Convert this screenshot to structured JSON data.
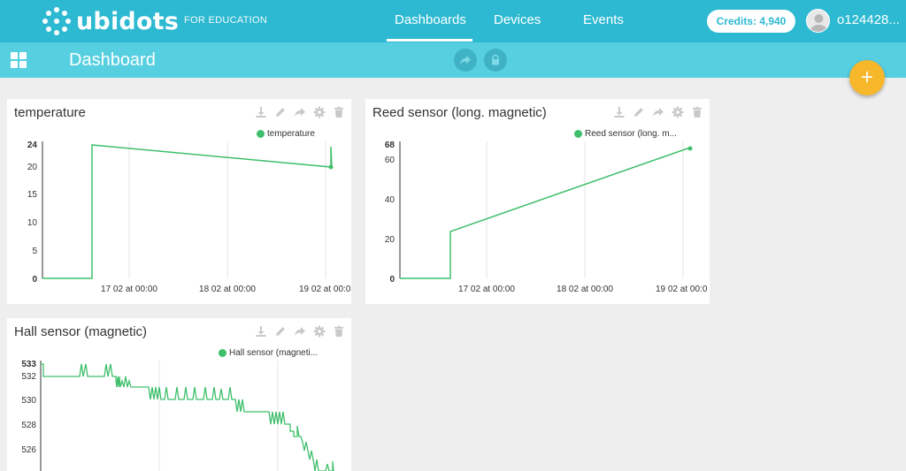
{
  "header": {
    "logo_text": "ubidots",
    "edu_label": "FOR EDUCATION",
    "nav": [
      {
        "label": "Dashboards",
        "active": true
      },
      {
        "label": "Devices",
        "active": false
      },
      {
        "label": "Events",
        "active": false
      }
    ],
    "credits": "Credits: 4,940",
    "username": "o124428..."
  },
  "subbar": {
    "title": "Dashboard",
    "icons": [
      "grid-icon",
      "share-icon",
      "lock-icon"
    ]
  },
  "fab": {
    "label": "+"
  },
  "colors": {
    "primary": "#2cb9d1",
    "secondary": "#56cfe0",
    "accent": "#f6b72b",
    "series": "#3fbf6b"
  },
  "widgets": [
    {
      "title": "temperature",
      "legend": "temperature",
      "tools": [
        "download-icon",
        "edit-icon",
        "share-icon",
        "settings-icon",
        "trash-icon"
      ],
      "y_max_label": "24",
      "y_ticks": [
        "20",
        "15",
        "10",
        "5",
        "0"
      ],
      "x_ticks": [
        "17 02 at 00:00",
        "18 02 at 00:00",
        "19 02 at 00:0"
      ]
    },
    {
      "title": "Reed sensor (long. magnetic)",
      "legend": "Reed sensor (long. m...",
      "tools": [
        "download-icon",
        "edit-icon",
        "share-icon",
        "settings-icon",
        "trash-icon"
      ],
      "y_max_label": "68",
      "y_ticks": [
        "60",
        "40",
        "20",
        "0"
      ],
      "x_ticks": [
        "17 02 at 00:00",
        "18 02 at 00:00",
        "19 02 at 00:0"
      ]
    },
    {
      "title": "Hall sensor (magnetic)",
      "legend": "Hall sensor (magneti...",
      "tools": [
        "download-icon",
        "edit-icon",
        "share-icon",
        "settings-icon",
        "trash-icon"
      ],
      "y_max_label": "533",
      "y_ticks": [
        "532",
        "530",
        "528",
        "526"
      ],
      "x_ticks": []
    }
  ],
  "chart_data": [
    {
      "type": "line",
      "series": [
        {
          "name": "temperature",
          "x": [
            "16 02 at 16:00",
            "16 02 at 16:01",
            "19 02 at 02:00",
            "19 02 at 02:05",
            "19 02 at 02:10"
          ],
          "values": [
            0,
            24,
            20,
            23,
            20
          ]
        }
      ],
      "ylim": [
        0,
        24
      ]
    },
    {
      "type": "line",
      "series": [
        {
          "name": "Reed sensor (long. magnetic)",
          "x": [
            "16 02 at 12:00",
            "16 02 at 12:01",
            "19 02 at 01:00",
            "19 02 at 01:05"
          ],
          "values": [
            0,
            24,
            65,
            67
          ]
        }
      ],
      "ylim": [
        0,
        68
      ]
    },
    {
      "type": "line",
      "series": [
        {
          "name": "Hall sensor (magnetic)",
          "values": [
            533,
            532,
            533,
            532,
            531,
            532,
            531,
            530,
            531,
            530,
            529,
            530,
            529,
            528,
            527,
            526,
            525
          ]
        }
      ],
      "ylim": [
        525,
        533
      ]
    }
  ]
}
